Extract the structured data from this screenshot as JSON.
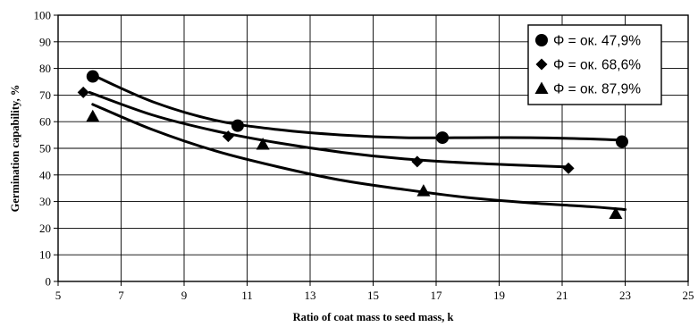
{
  "chart_data": {
    "type": "scatter",
    "title": "",
    "xlabel": "Ratio of coat mass to seed mass, k",
    "ylabel": "Germination capability, %",
    "xlim": [
      5,
      25
    ],
    "ylim": [
      0,
      100
    ],
    "x_ticks": [
      5,
      7,
      9,
      11,
      13,
      15,
      17,
      19,
      21,
      23,
      25
    ],
    "y_ticks": [
      0,
      10,
      20,
      30,
      40,
      50,
      60,
      70,
      80,
      90,
      100
    ],
    "grid": true,
    "legend_position": "top-right",
    "series": [
      {
        "name": "Φ = ок. 47,9%",
        "marker": "circle",
        "points": [
          [
            6.1,
            77
          ],
          [
            10.7,
            58.5
          ],
          [
            17.2,
            54
          ],
          [
            22.9,
            52.5
          ]
        ],
        "trend": [
          [
            6.1,
            77.5
          ],
          [
            8,
            67.5
          ],
          [
            10,
            60.5
          ],
          [
            12,
            57
          ],
          [
            14,
            55
          ],
          [
            16,
            54
          ],
          [
            18,
            54
          ],
          [
            20,
            54
          ],
          [
            22,
            53.5
          ],
          [
            23,
            53
          ]
        ]
      },
      {
        "name": "Φ = ок. 68,6%",
        "marker": "diamond",
        "points": [
          [
            5.8,
            71
          ],
          [
            10.4,
            54.5
          ],
          [
            16.4,
            45
          ],
          [
            21.2,
            42.5
          ]
        ],
        "trend": [
          [
            6,
            71
          ],
          [
            8,
            62.5
          ],
          [
            10,
            56.5
          ],
          [
            12,
            52
          ],
          [
            14,
            48.5
          ],
          [
            16,
            46
          ],
          [
            18,
            44.5
          ],
          [
            20,
            43.5
          ],
          [
            21.2,
            43
          ]
        ]
      },
      {
        "name": "Φ = ок. 87,9%",
        "marker": "triangle",
        "points": [
          [
            6.1,
            62
          ],
          [
            11.5,
            51.5
          ],
          [
            16.6,
            34
          ],
          [
            22.7,
            25.5
          ]
        ],
        "trend": [
          [
            6.1,
            66.5
          ],
          [
            8,
            57
          ],
          [
            10,
            49
          ],
          [
            12,
            43
          ],
          [
            14,
            38
          ],
          [
            16,
            34.5
          ],
          [
            18,
            31.5
          ],
          [
            20,
            29.5
          ],
          [
            22,
            28
          ],
          [
            23,
            27
          ]
        ]
      }
    ]
  }
}
